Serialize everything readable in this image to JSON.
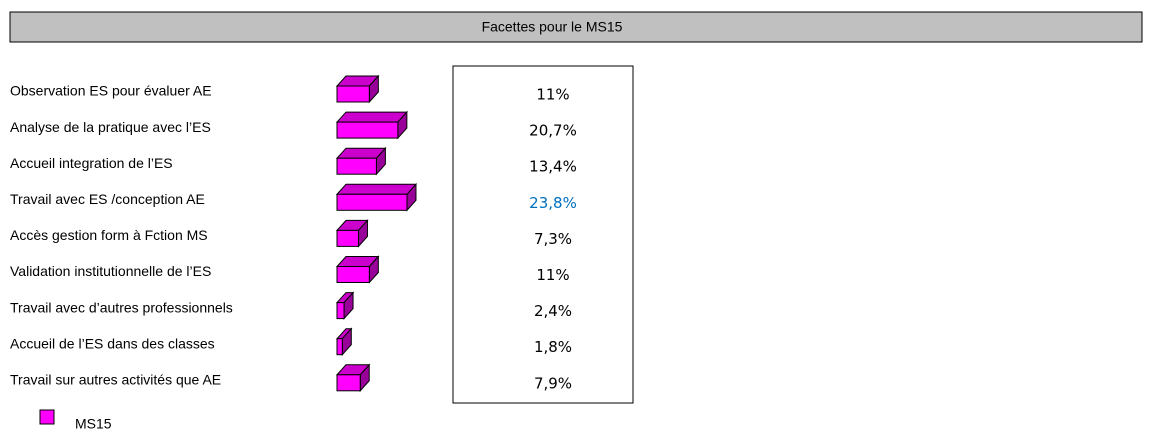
{
  "chart_data": {
    "type": "bar",
    "orientation": "horizontal",
    "title": "Facettes pour le MS15",
    "categories": [
      "Observation ES pour évaluer AE",
      "Analyse de la pratique avec l’ES",
      "Accueil integration de l’ES",
      "Travail avec ES /conception AE",
      "Accès gestion form à Fction MS",
      "Validation institutionnelle de l’ES",
      "Travail avec d’autres professionnels",
      "Accueil de l’ES dans des classes",
      "Travail sur autres activités que AE"
    ],
    "series": [
      {
        "name": "MS15",
        "color": "#ff00ff",
        "values": [
          11,
          20.7,
          13.4,
          23.8,
          7.3,
          11,
          2.4,
          1.8,
          7.9
        ],
        "value_labels": [
          "11%",
          "20,7%",
          "13,4%",
          "23,8%",
          "7,3%",
          "11%",
          "2,4%",
          "1,8%",
          "7,9%"
        ],
        "value_label_colors": [
          "#000000",
          "#000000",
          "#000000",
          "#0070c0",
          "#000000",
          "#000000",
          "#000000",
          "#000000",
          "#000000"
        ]
      }
    ],
    "legend": true
  }
}
